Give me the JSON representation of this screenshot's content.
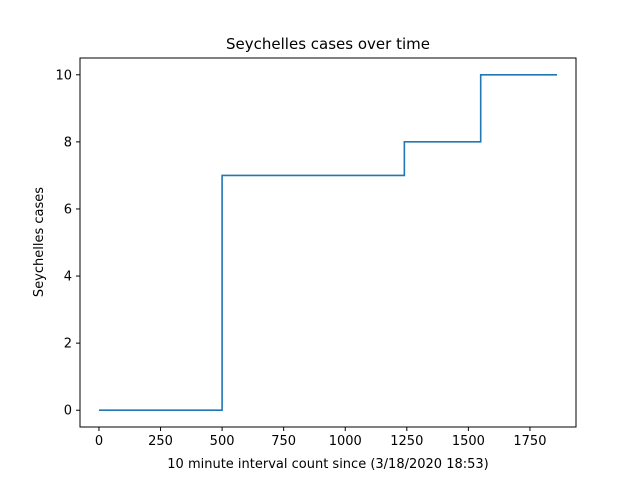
{
  "chart_data": {
    "type": "line",
    "title": "Seychelles cases over time",
    "xlabel": "10 minute interval count since (3/18/2020 18:53)",
    "ylabel": "Seychelles cases",
    "xlim": [
      -77,
      1937
    ],
    "ylim": [
      -0.5,
      10.5
    ],
    "xticks": [
      0,
      250,
      500,
      750,
      1000,
      1250,
      1500,
      1750
    ],
    "xtick_labels": [
      "0",
      "250",
      "500",
      "750",
      "1000",
      "1250",
      "1500",
      "1750"
    ],
    "yticks": [
      0,
      2,
      4,
      6,
      8,
      10
    ],
    "ytick_labels": [
      "0",
      "2",
      "4",
      "6",
      "8",
      "10"
    ],
    "grid": false,
    "series": [
      {
        "color": "#1f77b4",
        "x": [
          0,
          500,
          500,
          1240,
          1240,
          1550,
          1550,
          1860
        ],
        "y": [
          0,
          0,
          7,
          7,
          8,
          8,
          10,
          10
        ]
      }
    ]
  }
}
